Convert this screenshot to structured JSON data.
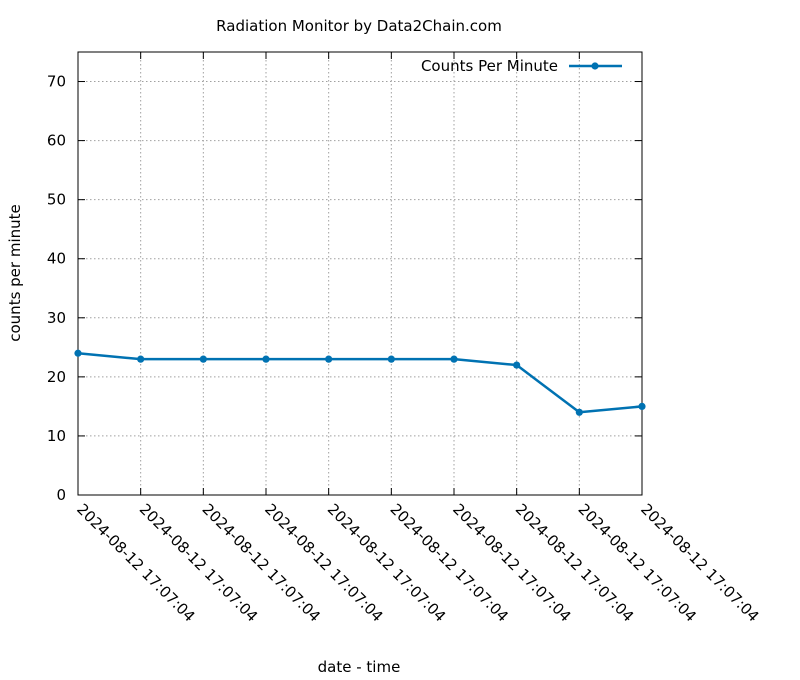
{
  "chart_data": {
    "type": "line",
    "title": "Radiation Monitor by Data2Chain.com",
    "xlabel": "date - time",
    "ylabel": "counts per minute",
    "ylim": [
      0,
      75
    ],
    "yticks": [
      0,
      10,
      20,
      30,
      40,
      50,
      60,
      70
    ],
    "grid": true,
    "legend_position": "top-right",
    "x": [
      "2024-08-12 17:07:04",
      "2024-08-12 17:07:04",
      "2024-08-12 17:07:04",
      "2024-08-12 17:07:04",
      "2024-08-12 17:07:04",
      "2024-08-12 17:07:04",
      "2024-08-12 17:07:04",
      "2024-08-12 17:07:04",
      "2024-08-12 17:07:04",
      "2024-08-12 17:07:04"
    ],
    "series": [
      {
        "name": "Counts Per Minute",
        "color": "#0072b2",
        "marker": "filled-circle",
        "values": [
          24,
          23,
          23,
          23,
          23,
          23,
          23,
          22,
          14,
          15
        ]
      }
    ]
  }
}
